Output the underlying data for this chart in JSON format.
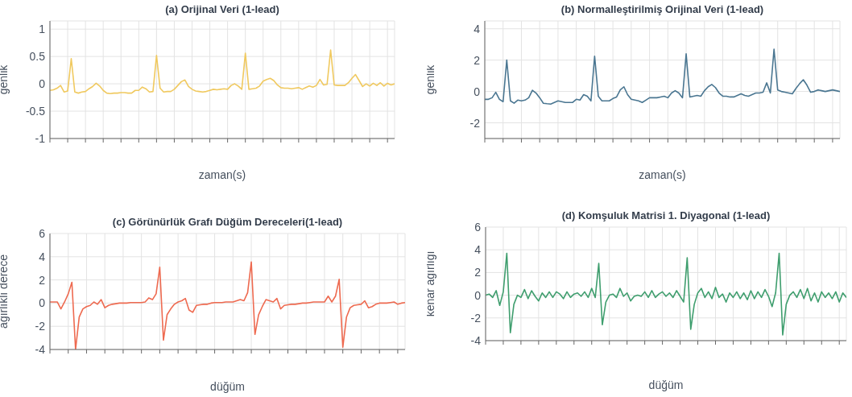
{
  "chart_data": [
    {
      "type": "line",
      "title": "(a) Orijinal Veri (1-lead)",
      "xlabel": "zaman(s)",
      "ylabel": "genlik",
      "color": "#f0c95f",
      "grid": true,
      "tick_labels": "y",
      "ylim": [
        -1,
        1.15
      ],
      "yticks": [
        -1,
        -0.5,
        0,
        0.5,
        1
      ],
      "categories": [
        null,
        null,
        null,
        null,
        null,
        null,
        null,
        null,
        null,
        null,
        null,
        null,
        null,
        null,
        null,
        null,
        null,
        null,
        null,
        null,
        null,
        null,
        null,
        null,
        null,
        null,
        null,
        null,
        null,
        null,
        null,
        null,
        null,
        null,
        null,
        null,
        null,
        null,
        null,
        null,
        null,
        null,
        null,
        null,
        null,
        null,
        null,
        null,
        null,
        null,
        null,
        null,
        null,
        null,
        null,
        null,
        null,
        null,
        null,
        null,
        null,
        null,
        null,
        null,
        null,
        null,
        null,
        null,
        null,
        null,
        null,
        null,
        null,
        null,
        null,
        null,
        null,
        null,
        null,
        null,
        null,
        null,
        null,
        null,
        null,
        null,
        null,
        null,
        null,
        null,
        null,
        null,
        null,
        null,
        null,
        null,
        null,
        null
      ],
      "values": [
        -0.12,
        -0.11,
        -0.08,
        -0.03,
        -0.15,
        -0.13,
        0.46,
        -0.15,
        -0.17,
        -0.15,
        -0.14,
        -0.09,
        -0.05,
        0.01,
        -0.04,
        -0.12,
        -0.17,
        -0.18,
        -0.17,
        -0.17,
        -0.16,
        -0.16,
        -0.17,
        -0.17,
        -0.12,
        -0.12,
        -0.06,
        -0.09,
        -0.15,
        -0.14,
        0.52,
        -0.08,
        -0.15,
        -0.14,
        -0.14,
        -0.1,
        -0.03,
        0.04,
        0.07,
        -0.05,
        -0.1,
        -0.13,
        -0.14,
        -0.15,
        -0.14,
        -0.12,
        -0.1,
        -0.11,
        -0.1,
        -0.09,
        -0.1,
        -0.03,
        0,
        -0.04,
        -0.1,
        0.56,
        -0.1,
        -0.09,
        -0.08,
        -0.04,
        0.05,
        0.08,
        0.1,
        0.06,
        -0.02,
        -0.07,
        -0.08,
        -0.08,
        -0.09,
        -0.08,
        -0.07,
        -0.1,
        -0.07,
        -0.04,
        -0.06,
        -0.03,
        0.08,
        -0.02,
        -0.01,
        0.62,
        -0.02,
        -0.03,
        -0.03,
        -0.03,
        0.02,
        0.1,
        0.17,
        0.06,
        -0.05,
        0,
        -0.04,
        0.01,
        -0.03,
        0.02,
        -0.04,
        0.01,
        -0.02,
        0
      ]
    },
    {
      "type": "line",
      "title": "(b) Normalleştirilmiş Orijinal Veri (1-lead)",
      "xlabel": "zaman(s)",
      "ylabel": "genlik",
      "color": "#4a7691",
      "grid": true,
      "tick_labels": "y",
      "ylim": [
        -3,
        4.5
      ],
      "yticks": [
        -2,
        0,
        2,
        4
      ],
      "categories": [
        null,
        null,
        null,
        null,
        null,
        null,
        null,
        null,
        null,
        null,
        null,
        null,
        null,
        null,
        null,
        null,
        null,
        null,
        null,
        null,
        null,
        null,
        null,
        null,
        null,
        null,
        null,
        null,
        null,
        null,
        null,
        null,
        null,
        null,
        null,
        null,
        null,
        null,
        null,
        null,
        null,
        null,
        null,
        null,
        null,
        null,
        null,
        null,
        null,
        null,
        null,
        null,
        null,
        null,
        null,
        null,
        null,
        null,
        null,
        null,
        null,
        null,
        null,
        null,
        null,
        null,
        null,
        null,
        null,
        null,
        null,
        null,
        null,
        null,
        null,
        null,
        null,
        null,
        null,
        null,
        null,
        null,
        null,
        null,
        null,
        null,
        null,
        null,
        null,
        null,
        null,
        null,
        null,
        null,
        null,
        null,
        null,
        null
      ],
      "values": [
        -0.5,
        -0.5,
        -0.4,
        -0.05,
        -0.5,
        -0.65,
        2.0,
        -0.6,
        -0.75,
        -0.55,
        -0.6,
        -0.55,
        -0.4,
        0.08,
        -0.1,
        -0.4,
        -0.75,
        -0.78,
        -0.8,
        -0.7,
        -0.6,
        -0.65,
        -0.7,
        -0.7,
        -0.7,
        -0.5,
        -0.55,
        -0.2,
        -0.3,
        -0.6,
        2.25,
        -0.3,
        -0.6,
        -0.6,
        -0.6,
        -0.45,
        -0.35,
        0.1,
        0.3,
        -0.2,
        -0.5,
        -0.55,
        -0.6,
        -0.7,
        -0.55,
        -0.4,
        -0.4,
        -0.4,
        -0.35,
        -0.3,
        -0.4,
        -0.1,
        0.05,
        -0.1,
        -0.4,
        2.4,
        -0.35,
        -0.3,
        -0.25,
        -0.3,
        0.05,
        0.3,
        0.45,
        0.25,
        -0.1,
        -0.3,
        -0.3,
        -0.35,
        -0.35,
        -0.25,
        -0.15,
        -0.25,
        -0.3,
        -0.2,
        -0.1,
        -0.1,
        -0.05,
        0.55,
        -0.1,
        2.7,
        0.1,
        0,
        -0.05,
        -0.1,
        -0.15,
        0.2,
        0.5,
        0.75,
        0.4,
        -0.05,
        0,
        0.1,
        0.05,
        0,
        0.05,
        0.1,
        0.05,
        0
      ]
    },
    {
      "type": "line",
      "title": "(c) Görünürlük Grafı Düğüm Dereceleri(1-lead)",
      "xlabel": "düğüm",
      "ylabel": "ağırlıklı derece",
      "color": "#ee6a50",
      "grid": true,
      "tick_labels": "y",
      "ylim": [
        -4,
        6
      ],
      "yticks": [
        -4,
        -2,
        0,
        2,
        4,
        6
      ],
      "categories": [
        null,
        null,
        null,
        null,
        null,
        null,
        null,
        null,
        null,
        null,
        null,
        null,
        null,
        null,
        null,
        null,
        null,
        null,
        null,
        null,
        null,
        null,
        null,
        null,
        null,
        null,
        null,
        null,
        null,
        null,
        null,
        null,
        null,
        null,
        null,
        null,
        null,
        null,
        null,
        null,
        null,
        null,
        null,
        null,
        null,
        null,
        null,
        null,
        null,
        null,
        null,
        null,
        null,
        null,
        null,
        null,
        null,
        null,
        null,
        null,
        null,
        null,
        null,
        null,
        null,
        null,
        null,
        null,
        null,
        null,
        null,
        null,
        null,
        null,
        null,
        null,
        null,
        null,
        null,
        null,
        null,
        null,
        null,
        null,
        null,
        null,
        null,
        null,
        null,
        null,
        null,
        null,
        null,
        null,
        null,
        null,
        null,
        null
      ],
      "values": [
        0.1,
        0.1,
        0.1,
        -0.5,
        0.1,
        0.8,
        1.8,
        -4,
        -1.2,
        -0.5,
        -0.3,
        -0.2,
        0.1,
        -0.1,
        0.3,
        -0.4,
        -0.2,
        -0.1,
        -0.05,
        0,
        0,
        0,
        0.05,
        0.05,
        0.05,
        0.05,
        0.1,
        0.45,
        0.3,
        0.8,
        3.1,
        -3.2,
        -1,
        -0.5,
        -0.1,
        0.1,
        0.2,
        0.4,
        -0.6,
        -0.8,
        -0.2,
        -0.15,
        -0.1,
        -0.1,
        0,
        0.05,
        0.05,
        0.05,
        0.1,
        0.1,
        0.1,
        0.2,
        0.3,
        0.2,
        0.9,
        3.55,
        -2.7,
        -1,
        -0.3,
        0.3,
        0.2,
        0.1,
        0.4,
        -0.5,
        -0.2,
        -0.15,
        -0.1,
        -0.1,
        -0.05,
        0,
        0,
        0.05,
        0.1,
        0.1,
        0.1,
        0.1,
        0.6,
        0.1,
        0.6,
        2.05,
        -3.8,
        -1.2,
        -0.4,
        -0.2,
        -0.15,
        -0.1,
        0.2,
        -0.4,
        -0.3,
        -0.1,
        0,
        0,
        0,
        0.05,
        0.1,
        -0.1,
        0,
        0.05
      ]
    },
    {
      "type": "line",
      "title": "(d) Komşuluk Matrisi 1. Diyagonal (1-lead)",
      "xlabel": "düğüm",
      "ylabel": "kenar ağırlığı",
      "color": "#3f9e6e",
      "grid": true,
      "tick_labels": "y",
      "ylim": [
        -4,
        6
      ],
      "yticks": [
        -4,
        -2,
        0,
        2,
        4,
        6
      ],
      "categories": [
        null,
        null,
        null,
        null,
        null,
        null,
        null,
        null,
        null,
        null,
        null,
        null,
        null,
        null,
        null,
        null,
        null,
        null,
        null,
        null,
        null,
        null,
        null,
        null,
        null,
        null,
        null,
        null,
        null,
        null,
        null,
        null,
        null,
        null,
        null,
        null,
        null,
        null,
        null,
        null,
        null,
        null,
        null,
        null,
        null,
        null,
        null,
        null,
        null,
        null,
        null,
        null,
        null,
        null,
        null,
        null,
        null,
        null,
        null,
        null,
        null,
        null,
        null,
        null,
        null,
        null,
        null,
        null,
        null,
        null,
        null,
        null,
        null,
        null,
        null,
        null,
        null,
        null,
        null,
        null,
        null,
        null,
        null,
        null,
        null,
        null,
        null,
        null,
        null,
        null,
        null,
        null,
        null,
        null,
        null,
        null,
        null,
        null,
        null,
        null,
        null,
        null,
        null
      ],
      "values": [
        0,
        0.1,
        -0.2,
        0.4,
        -0.9,
        0.3,
        3.7,
        -3.3,
        -0.8,
        0,
        -0.2,
        0.5,
        -0.3,
        0.4,
        -0.1,
        -0.5,
        0.2,
        -0.2,
        0.3,
        -0.2,
        0.3,
        0.1,
        -0.3,
        0.3,
        -0.2,
        0.1,
        0.2,
        -0.1,
        0.3,
        -0.2,
        0.6,
        -0.2,
        2.8,
        -2.6,
        -0.6,
        0,
        0.1,
        -0.2,
        0.6,
        -0.1,
        0.2,
        -0.5,
        -0.1,
        0,
        -0.1,
        0.3,
        -0.2,
        0.4,
        -0.2,
        0.1,
        0.3,
        -0.1,
        0.2,
        -0.2,
        0.4,
        -0.1,
        -0.6,
        3.3,
        -3,
        -0.8,
        0.2,
        0.6,
        -0.2,
        0.3,
        -0.3,
        0.7,
        -0.2,
        0.1,
        -0.6,
        0.2,
        -0.2,
        0.3,
        -0.3,
        0.2,
        -0.4,
        0.4,
        -0.3,
        0.3,
        -0.2,
        0.5,
        -0.1,
        -1,
        0.2,
        3.7,
        -3.5,
        -0.8,
        0,
        0.3,
        -0.2,
        0.5,
        -0.3,
        0.6,
        -0.5,
        0.2,
        -0.6,
        0.3,
        -0.2,
        0.2,
        -0.3,
        0.3,
        -0.6,
        0.2,
        -0.2
      ]
    }
  ]
}
